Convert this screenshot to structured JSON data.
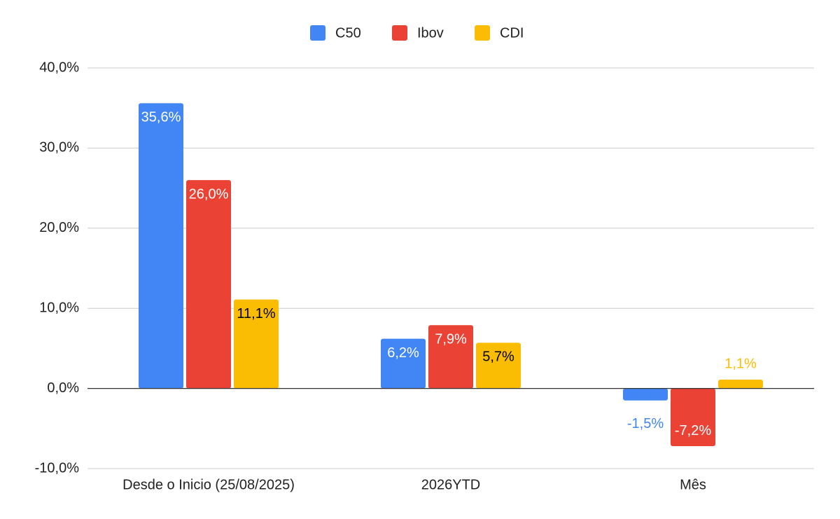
{
  "chart_data": {
    "type": "bar",
    "categories": [
      "Desde o Inicio (25/08/2025)",
      "2026YTD",
      "Mês"
    ],
    "series": [
      {
        "name": "C50",
        "color": "#4285f4",
        "values": [
          35.6,
          6.2,
          -1.5
        ],
        "value_labels": [
          "35,6%",
          "6,2%",
          "-1,5%"
        ]
      },
      {
        "name": "Ibov",
        "color": "#ea4335",
        "values": [
          26.0,
          7.9,
          -7.2
        ],
        "value_labels": [
          "26,0%",
          "7,9%",
          "-7,2%"
        ]
      },
      {
        "name": "CDI",
        "color": "#fbbc04",
        "values": [
          11.1,
          5.7,
          1.1
        ],
        "value_labels": [
          "11,1%",
          "5,7%",
          "1,1%"
        ]
      }
    ],
    "ylim": [
      -10,
      40
    ],
    "yticks": [
      {
        "value": -10,
        "label": "-10,0%"
      },
      {
        "value": 0,
        "label": "0,0%"
      },
      {
        "value": 10,
        "label": "10,0%"
      },
      {
        "value": 20,
        "label": "20,0%"
      },
      {
        "value": 30,
        "label": "30,0%"
      },
      {
        "value": 40,
        "label": "40,0%"
      }
    ],
    "grid": true,
    "legend": "top"
  }
}
